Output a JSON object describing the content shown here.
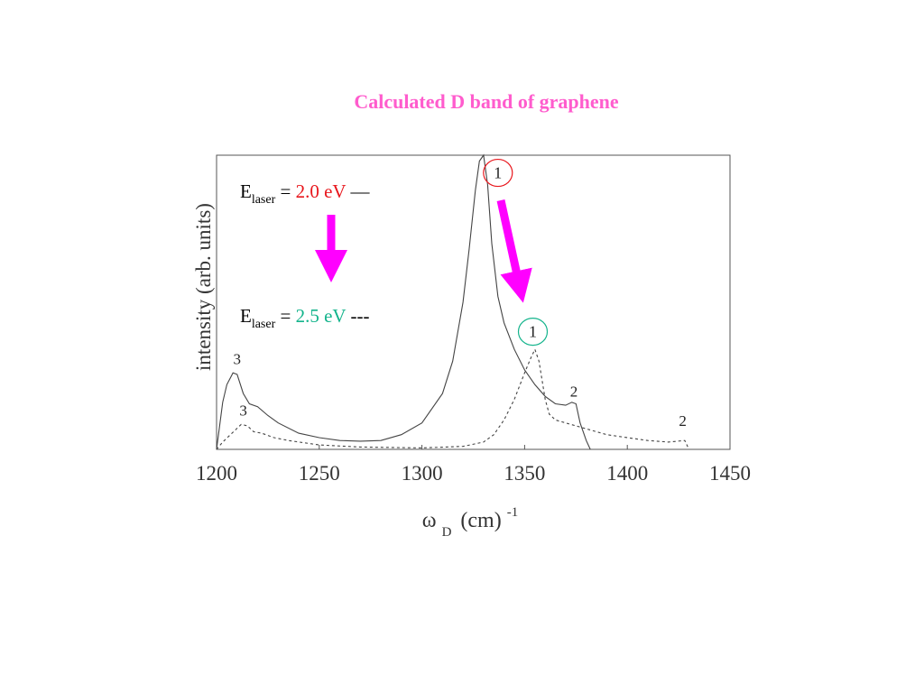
{
  "title": "Calculated D band of graphene",
  "colors": {
    "title": "#ff5ccd",
    "arrow": "#ff00ff",
    "red": "#e8161c",
    "green": "#14b48c",
    "axis": "#333333"
  },
  "chart_data": {
    "type": "line",
    "ylabel": "intensity (arb. units)",
    "xlabel_main": "ω",
    "xlabel_sub": "D",
    "xlabel_unit": "(cm)",
    "xlabel_sup": "-1",
    "xlim": [
      1200,
      1450
    ],
    "ylim": [
      0,
      1
    ],
    "xticks": [
      1200,
      1250,
      1300,
      1350,
      1400,
      1450
    ],
    "series": [
      {
        "name": "",
        "dash": "solid",
        "x": [
          1200,
          1203,
          1205,
          1208,
          1210,
          1213,
          1216,
          1220,
          1225,
          1230,
          1240,
          1250,
          1260,
          1270,
          1280,
          1290,
          1300,
          1310,
          1315,
          1320,
          1323,
          1326,
          1328,
          1330,
          1332,
          1334,
          1337,
          1340,
          1345,
          1350,
          1355,
          1360,
          1365,
          1370,
          1373,
          1375,
          1377,
          1380,
          1382
        ],
        "y": [
          0.0,
          0.16,
          0.22,
          0.26,
          0.255,
          0.19,
          0.155,
          0.145,
          0.115,
          0.09,
          0.055,
          0.04,
          0.03,
          0.028,
          0.03,
          0.05,
          0.09,
          0.19,
          0.3,
          0.5,
          0.68,
          0.88,
          0.98,
          1.0,
          0.9,
          0.7,
          0.52,
          0.43,
          0.34,
          0.27,
          0.22,
          0.18,
          0.155,
          0.15,
          0.16,
          0.155,
          0.09,
          0.03,
          0.0
        ]
      },
      {
        "name": "",
        "dash": "dashed",
        "x": [
          1200,
          1203,
          1206,
          1209,
          1212,
          1215,
          1218,
          1222,
          1228,
          1235,
          1250,
          1270,
          1300,
          1320,
          1330,
          1335,
          1340,
          1345,
          1350,
          1353,
          1355,
          1357,
          1360,
          1362,
          1365,
          1370,
          1380,
          1390,
          1400,
          1410,
          1420,
          1428,
          1430
        ],
        "y": [
          0.0,
          0.025,
          0.045,
          0.065,
          0.085,
          0.08,
          0.06,
          0.055,
          0.04,
          0.03,
          0.015,
          0.008,
          0.005,
          0.01,
          0.025,
          0.05,
          0.1,
          0.17,
          0.26,
          0.31,
          0.34,
          0.3,
          0.17,
          0.12,
          0.1,
          0.09,
          0.07,
          0.05,
          0.04,
          0.03,
          0.025,
          0.03,
          0.0
        ]
      }
    ],
    "peak_labels": [
      {
        "text": "3",
        "x": 1210,
        "y": 0.29
      },
      {
        "text": "3",
        "x": 1213,
        "y": 0.115
      },
      {
        "text": "2",
        "x": 1374,
        "y": 0.18
      },
      {
        "text": "2",
        "x": 1427,
        "y": 0.08
      }
    ],
    "circled_labels": [
      {
        "text": "1",
        "x": 1337,
        "y": 0.94,
        "color": "red"
      },
      {
        "text": "1",
        "x": 1354,
        "y": 0.4,
        "color": "green"
      }
    ],
    "legend": [
      {
        "prefix": "E",
        "sub": "laser",
        "eq": " = ",
        "value": "2.0 eV",
        "suffix": " —",
        "color": "red"
      },
      {
        "prefix": "E",
        "sub": "laser",
        "eq": " = ",
        "value": "2.5 eV",
        "suffix": " ---",
        "color": "green"
      }
    ],
    "grid": false
  }
}
